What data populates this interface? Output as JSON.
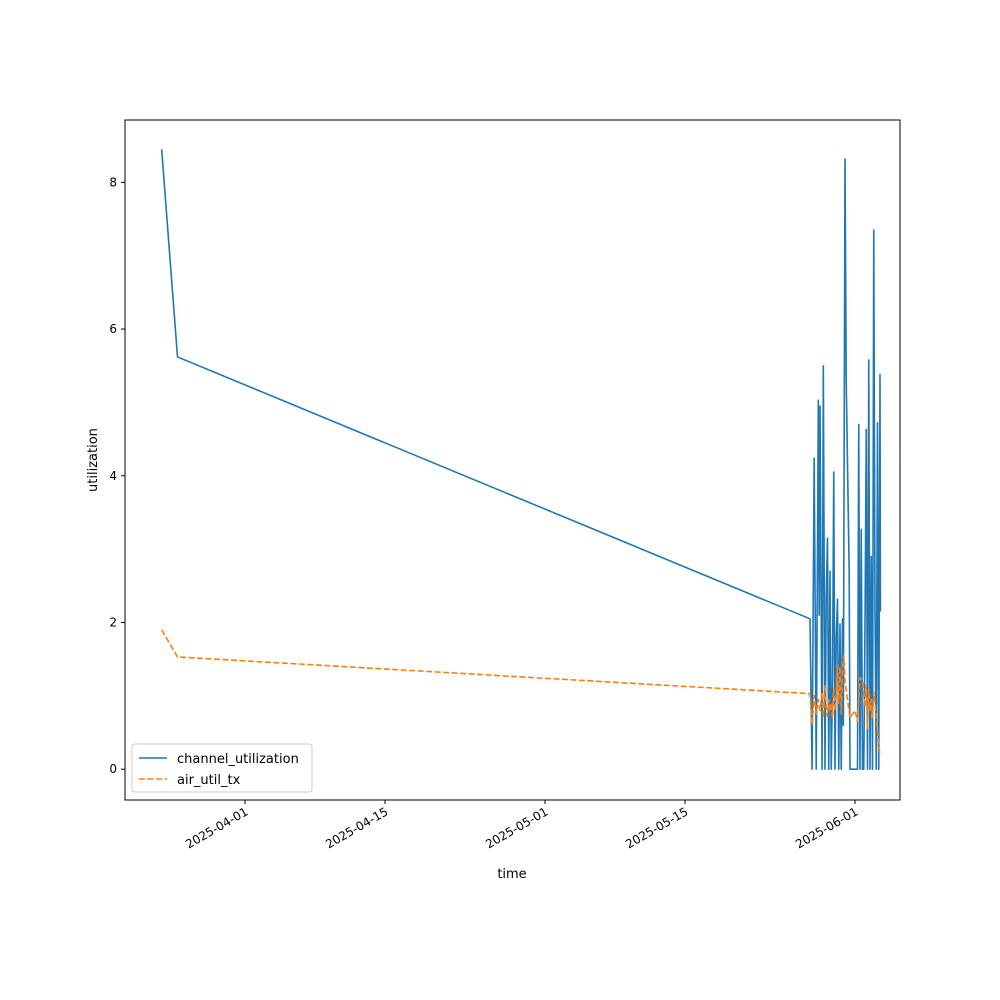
{
  "chart_data": {
    "type": "line",
    "title": "",
    "xlabel": "time",
    "ylabel": "utilization",
    "xlim": [
      "2025-03-20",
      "2025-06-05T12:00"
    ],
    "ylim": [
      -0.42,
      8.85
    ],
    "x_ticks": [
      "2025-04-01",
      "2025-04-15",
      "2025-05-01",
      "2025-05-15",
      "2025-06-01"
    ],
    "y_ticks": [
      0,
      2,
      4,
      6,
      8
    ],
    "grid": false,
    "legend_position": "lower-left",
    "colors": {
      "channel_utilization": "#1f77b4",
      "air_util_tx": "#ff7f0e"
    },
    "series": [
      {
        "name": "channel_utilization",
        "style": "solid",
        "points": [
          [
            "2025-03-23T16:00",
            8.45
          ],
          [
            "2025-03-25T06:00",
            5.62
          ],
          [
            "2025-05-27T12:00",
            2.05
          ],
          [
            "2025-05-27T17:00",
            0.0
          ],
          [
            "2025-05-27T22:00",
            4.24
          ],
          [
            "2025-05-28T03:00",
            0.0
          ],
          [
            "2025-05-28T08:00",
            5.03
          ],
          [
            "2025-05-28T10:00",
            2.1
          ],
          [
            "2025-05-28T12:00",
            4.95
          ],
          [
            "2025-05-28T17:00",
            0.0
          ],
          [
            "2025-05-28T20:00",
            5.5
          ],
          [
            "2025-05-29T00:00",
            0.0
          ],
          [
            "2025-05-29T03:00",
            2.4
          ],
          [
            "2025-05-29T06:00",
            3.15
          ],
          [
            "2025-05-29T09:00",
            0.0
          ],
          [
            "2025-05-29T12:00",
            2.7
          ],
          [
            "2025-05-29T15:00",
            0.0
          ],
          [
            "2025-05-29T18:00",
            1.2
          ],
          [
            "2025-05-29T21:00",
            4.05
          ],
          [
            "2025-05-30T00:00",
            0.0
          ],
          [
            "2025-05-30T03:00",
            1.8
          ],
          [
            "2025-05-30T06:00",
            2.32
          ],
          [
            "2025-05-30T09:00",
            0.0
          ],
          [
            "2025-05-30T12:00",
            1.98
          ],
          [
            "2025-05-30T15:00",
            0.0
          ],
          [
            "2025-05-30T18:00",
            2.05
          ],
          [
            "2025-05-30T20:00",
            0.6
          ],
          [
            "2025-05-31T00:00",
            8.32
          ],
          [
            "2025-05-31T03:00",
            5.27
          ],
          [
            "2025-05-31T10:00",
            2.7
          ],
          [
            "2025-05-31T12:00",
            0.0
          ],
          [
            "2025-06-01T06:00",
            0.0
          ],
          [
            "2025-06-01T09:00",
            4.7
          ],
          [
            "2025-06-01T12:00",
            0.0
          ],
          [
            "2025-06-01T15:00",
            3.27
          ],
          [
            "2025-06-01T18:00",
            0.0
          ],
          [
            "2025-06-01T21:00",
            0.0
          ],
          [
            "2025-06-02T00:00",
            1.98
          ],
          [
            "2025-06-02T03:00",
            4.63
          ],
          [
            "2025-06-02T06:00",
            0.0
          ],
          [
            "2025-06-02T09:00",
            5.58
          ],
          [
            "2025-06-02T12:00",
            0.0
          ],
          [
            "2025-06-02T15:00",
            2.9
          ],
          [
            "2025-06-02T18:00",
            0.0
          ],
          [
            "2025-06-02T21:00",
            7.35
          ],
          [
            "2025-06-03T00:00",
            2.2
          ],
          [
            "2025-06-03T03:00",
            0.0
          ],
          [
            "2025-06-03T06:00",
            4.72
          ],
          [
            "2025-06-03T09:00",
            0.0
          ],
          [
            "2025-06-03T12:00",
            5.38
          ],
          [
            "2025-06-03T13:00",
            2.15
          ]
        ]
      },
      {
        "name": "air_util_tx",
        "style": "dashed",
        "points": [
          [
            "2025-03-23T16:00",
            1.9
          ],
          [
            "2025-03-25T06:00",
            1.53
          ],
          [
            "2025-05-27T12:00",
            1.03
          ],
          [
            "2025-05-27T17:00",
            0.6
          ],
          [
            "2025-05-27T22:00",
            1.0
          ],
          [
            "2025-05-28T03:00",
            0.75
          ],
          [
            "2025-05-28T08:00",
            0.95
          ],
          [
            "2025-05-28T12:00",
            0.8
          ],
          [
            "2025-05-28T17:00",
            1.05
          ],
          [
            "2025-05-28T20:00",
            0.7
          ],
          [
            "2025-05-29T00:00",
            1.15
          ],
          [
            "2025-05-29T03:00",
            0.85
          ],
          [
            "2025-05-29T06:00",
            0.72
          ],
          [
            "2025-05-29T09:00",
            0.95
          ],
          [
            "2025-05-29T12:00",
            0.78
          ],
          [
            "2025-05-29T15:00",
            0.9
          ],
          [
            "2025-05-29T18:00",
            0.7
          ],
          [
            "2025-05-29T21:00",
            1.1
          ],
          [
            "2025-05-30T00:00",
            0.8
          ],
          [
            "2025-05-30T03:00",
            1.0
          ],
          [
            "2025-05-30T06:00",
            1.42
          ],
          [
            "2025-05-30T09:00",
            0.9
          ],
          [
            "2025-05-30T12:00",
            1.4
          ],
          [
            "2025-05-30T15:00",
            0.75
          ],
          [
            "2025-05-30T18:00",
            1.38
          ],
          [
            "2025-05-30T21:00",
            1.55
          ],
          [
            "2025-05-31T00:00",
            1.2
          ],
          [
            "2025-05-31T06:00",
            0.95
          ],
          [
            "2025-05-31T12:00",
            0.7
          ],
          [
            "2025-06-01T00:00",
            0.8
          ],
          [
            "2025-06-01T06:00",
            0.65
          ],
          [
            "2025-06-01T12:00",
            1.25
          ],
          [
            "2025-06-01T18:00",
            1.2
          ],
          [
            "2025-06-02T00:00",
            0.85
          ],
          [
            "2025-06-02T03:00",
            1.15
          ],
          [
            "2025-06-02T06:00",
            0.55
          ],
          [
            "2025-06-02T09:00",
            1.1
          ],
          [
            "2025-06-02T12:00",
            0.8
          ],
          [
            "2025-06-02T15:00",
            0.95
          ],
          [
            "2025-06-02T18:00",
            0.7
          ],
          [
            "2025-06-02T21:00",
            1.05
          ],
          [
            "2025-06-03T00:00",
            0.9
          ],
          [
            "2025-06-03T03:00",
            0.75
          ],
          [
            "2025-06-03T06:00",
            0.5
          ],
          [
            "2025-06-03T09:00",
            0.3
          ],
          [
            "2025-06-03T12:00",
            0.2
          ]
        ]
      }
    ]
  }
}
